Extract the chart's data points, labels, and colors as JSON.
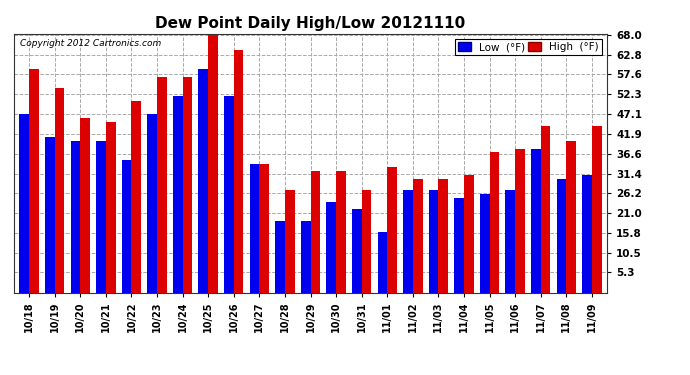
{
  "title": "Dew Point Daily High/Low 20121110",
  "copyright": "Copyright 2012 Cartronics.com",
  "labels": [
    "10/18",
    "10/19",
    "10/20",
    "10/21",
    "10/22",
    "10/23",
    "10/24",
    "10/25",
    "10/26",
    "10/27",
    "10/28",
    "10/29",
    "10/30",
    "10/31",
    "11/01",
    "11/02",
    "11/03",
    "11/04",
    "11/05",
    "11/06",
    "11/07",
    "11/08",
    "11/09"
  ],
  "high": [
    59.0,
    54.0,
    46.0,
    45.0,
    50.5,
    57.0,
    57.0,
    68.0,
    64.0,
    34.0,
    27.0,
    32.0,
    32.0,
    27.0,
    33.0,
    30.0,
    30.0,
    31.0,
    37.0,
    38.0,
    44.0,
    40.0,
    44.0
  ],
  "low": [
    47.0,
    41.0,
    40.0,
    40.0,
    35.0,
    47.0,
    52.0,
    59.0,
    52.0,
    34.0,
    19.0,
    19.0,
    24.0,
    22.0,
    16.0,
    27.0,
    27.0,
    25.0,
    26.0,
    27.0,
    38.0,
    30.0,
    31.0
  ],
  "yticks": [
    5.3,
    10.5,
    15.8,
    21.0,
    26.2,
    31.4,
    36.6,
    41.9,
    47.1,
    52.3,
    57.6,
    62.8,
    68.0
  ],
  "bar_width": 0.38,
  "low_color": "#0000ee",
  "high_color": "#dd0000",
  "bg_color": "#ffffff",
  "grid_color": "#aaaaaa",
  "title_fontsize": 11,
  "ymin": 0,
  "ymax": 68.0
}
